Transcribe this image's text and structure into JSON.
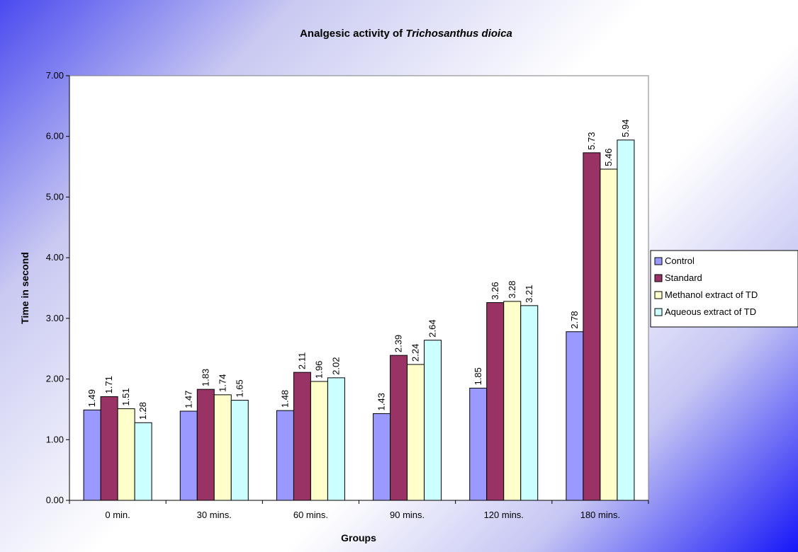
{
  "chart_data": {
    "type": "bar",
    "title": "Analgesic activity of ",
    "title_italic": "Trichosanthus dioica",
    "xlabel": "Groups",
    "ylabel": "Time in second",
    "ylim": [
      0,
      7
    ],
    "yticks": [
      "0.00",
      "1.00",
      "2.00",
      "3.00",
      "4.00",
      "5.00",
      "6.00",
      "7.00"
    ],
    "grid": false,
    "legend_position": "right",
    "categories": [
      "0 min.",
      "30 mins.",
      "60 mins.",
      "90 mins.",
      "120 mins.",
      "180 mins."
    ],
    "series": [
      {
        "name": "Control",
        "color": "#9999ff",
        "values": [
          1.49,
          1.47,
          1.48,
          1.43,
          1.85,
          2.78
        ],
        "labels": [
          "1.49",
          "1.47",
          "1.48",
          "1.43",
          "1.85",
          "2.78"
        ]
      },
      {
        "name": "Standard",
        "color": "#993366",
        "values": [
          1.71,
          1.83,
          2.11,
          2.39,
          3.26,
          5.73
        ],
        "labels": [
          "1.71",
          "1.83",
          "2.11",
          "2.39",
          "3.26",
          "5.73"
        ]
      },
      {
        "name": "Methanol extract of TD",
        "color": "#ffffcc",
        "values": [
          1.51,
          1.74,
          1.96,
          2.24,
          3.28,
          5.46
        ],
        "labels": [
          "1.51",
          "1.74",
          "1.96",
          "2.24",
          "3.28",
          "5.46"
        ]
      },
      {
        "name": "Aqueous extract of TD",
        "color": "#ccffff",
        "values": [
          1.28,
          1.65,
          2.02,
          2.64,
          3.21,
          5.94
        ],
        "labels": [
          "1.28",
          "1.65",
          "2.02",
          "2.64",
          "3.21",
          "5.94"
        ]
      }
    ]
  }
}
